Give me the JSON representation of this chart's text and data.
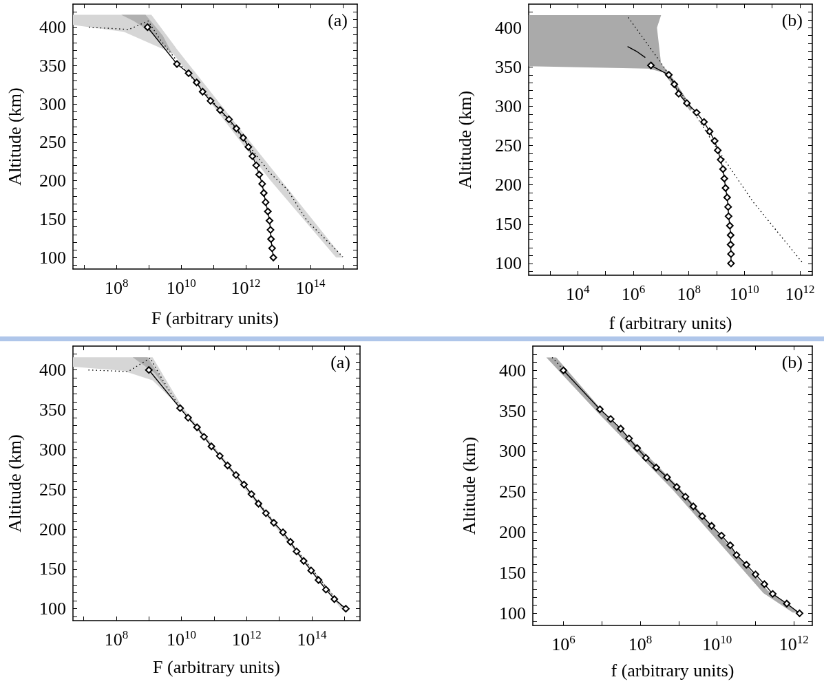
{
  "chart_data": [
    {
      "type": "line",
      "xlabel": "F (arbitrary units)",
      "ylabel": "Altitude (km)",
      "annotations": [
        "(a)"
      ],
      "log": "x",
      "xlim": [
        4500000.0,
        2800000000000000.0
      ],
      "ylim": [
        85,
        430
      ],
      "xticks": [
        {
          "value": 10000000.0,
          "label": null
        },
        {
          "value": 100000000.0,
          "label": "10$^{8}$"
        },
        {
          "value": 1000000000.0,
          "label": null
        },
        {
          "value": 10000000000.0,
          "label": "10$^{10}$"
        },
        {
          "value": 100000000000.0,
          "label": null
        },
        {
          "value": 1000000000000.0,
          "label": "10$^{12}$"
        },
        {
          "value": 10000000000000.0,
          "label": null
        },
        {
          "value": 100000000000000.0,
          "label": "10$^{14}$"
        },
        {
          "value": 1000000000000000.0,
          "label": null
        }
      ],
      "yticks": [
        {
          "value": 90,
          "label": null
        },
        100,
        {
          "value": 110,
          "label": null
        },
        {
          "value": 120,
          "label": null
        },
        {
          "value": 130,
          "label": null
        },
        {
          "value": 140,
          "label": null
        },
        150,
        {
          "value": 160,
          "label": null
        },
        {
          "value": 170,
          "label": null
        },
        {
          "value": 180,
          "label": null
        },
        {
          "value": 190,
          "label": null
        },
        200,
        {
          "value": 210,
          "label": null
        },
        {
          "value": 220,
          "label": null
        },
        {
          "value": 230,
          "label": null
        },
        {
          "value": 240,
          "label": null
        },
        250,
        {
          "value": 260,
          "label": null
        },
        {
          "value": 270,
          "label": null
        },
        {
          "value": 280,
          "label": null
        },
        {
          "value": 290,
          "label": null
        },
        300,
        {
          "value": 310,
          "label": null
        },
        {
          "value": 320,
          "label": null
        },
        {
          "value": 330,
          "label": null
        },
        {
          "value": 340,
          "label": null
        },
        350,
        {
          "value": 360,
          "label": null
        },
        {
          "value": 370,
          "label": null
        },
        {
          "value": 380,
          "label": null
        },
        {
          "value": 390,
          "label": null
        },
        400,
        {
          "value": 410,
          "label": null
        },
        {
          "value": 420,
          "label": null
        }
      ],
      "series": [
        {
          "type": "area",
          "color": "#d6d6d6",
          "x": [
            4500000.0,
            1200000000.0,
            7800000000.0,
            1000000000000.0,
            1000000000000000.0,
            620000000000000.0,
            5600000000000.0,
            5500000000.0,
            950000000.0,
            170000000.0,
            4500000.0
          ],
          "values": [
            416,
            416,
            370,
            258,
            100,
            100,
            201,
            366,
            380,
            394,
            403
          ]
        },
        {
          "type": "area",
          "color": "#b0b0b0",
          "x": [
            140000000.0,
            790000000.0,
            2700000000.0,
            5500000000.0,
            1300000000.0,
            340000000.0
          ],
          "values": [
            416,
            416,
            389,
            364,
            392,
            408
          ]
        },
        {
          "type": "line",
          "line_style": "dotted",
          "marker": "none",
          "color": "#000000",
          "x": [
            14000000.0,
            240000000.0,
            950000000.0,
            2300000000.0,
            7800000000.0,
            87000000000.0,
            1000000000000.0,
            5600000000000.0,
            19000000000000.0,
            78000000000000.0,
            1000000000000000.0
          ],
          "values": [
            400,
            397,
            408,
            383,
            355,
            305,
            251,
            210,
            189,
            148,
            101
          ]
        },
        {
          "type": "line",
          "line_style": "solid",
          "marker": "diamond",
          "color": "#000000",
          "x": [
            910000000.0,
            7400000000.0,
            17000000000.0,
            30000000000.0,
            46000000000.0,
            81000000000.0,
            160000000000.0,
            300000000000.0,
            510000000000.0,
            830000000000.0,
            1200000000000.0,
            1600000000000.0,
            2100000000000.0,
            2600000000000.0,
            3200000000000.0,
            3600000000000.0,
            4100000000000.0,
            4800000000000.0,
            5400000000000.0,
            5800000000000.0,
            6000000000000.0,
            6500000000000.0,
            7100000000000.0
          ],
          "values": [
            400,
            352,
            340,
            328,
            316,
            304,
            292,
            280,
            268,
            256,
            244,
            232,
            220,
            208,
            196,
            184,
            172,
            160,
            148,
            136,
            124,
            112,
            100
          ]
        }
      ]
    },
    {
      "type": "line",
      "xlabel": "f (arbitrary units)",
      "ylabel": "Altitude (km)",
      "annotations": [
        "(b)"
      ],
      "log": "x",
      "xlim": [
        170,
        2800000000000.0
      ],
      "ylim": [
        85,
        430
      ],
      "xticks": [
        {
          "value": 1000.0,
          "label": null
        },
        {
          "value": 10000.0,
          "label": "10$^{4}$"
        },
        {
          "value": 100000.0,
          "label": null
        },
        {
          "value": 1000000.0,
          "label": "10$^{6}$"
        },
        {
          "value": 10000000.0,
          "label": null
        },
        {
          "value": 100000000.0,
          "label": "10$^{8}$"
        },
        {
          "value": 1000000000.0,
          "label": null
        },
        {
          "value": 10000000000.0,
          "label": "10$^{10}$"
        },
        {
          "value": 100000000000.0,
          "label": null
        },
        {
          "value": 1000000000000.0,
          "label": "10$^{12}$"
        }
      ],
      "yticks": [
        {
          "value": 90,
          "label": null
        },
        100,
        {
          "value": 110,
          "label": null
        },
        {
          "value": 120,
          "label": null
        },
        {
          "value": 130,
          "label": null
        },
        {
          "value": 140,
          "label": null
        },
        150,
        {
          "value": 160,
          "label": null
        },
        {
          "value": 170,
          "label": null
        },
        {
          "value": 180,
          "label": null
        },
        {
          "value": 190,
          "label": null
        },
        200,
        {
          "value": 210,
          "label": null
        },
        {
          "value": 220,
          "label": null
        },
        {
          "value": 230,
          "label": null
        },
        {
          "value": 240,
          "label": null
        },
        250,
        {
          "value": 260,
          "label": null
        },
        {
          "value": 270,
          "label": null
        },
        {
          "value": 280,
          "label": null
        },
        {
          "value": 290,
          "label": null
        },
        300,
        {
          "value": 310,
          "label": null
        },
        {
          "value": 320,
          "label": null
        },
        {
          "value": 330,
          "label": null
        },
        {
          "value": 340,
          "label": null
        },
        350,
        {
          "value": 360,
          "label": null
        },
        {
          "value": 370,
          "label": null
        },
        {
          "value": 380,
          "label": null
        },
        {
          "value": 390,
          "label": null
        },
        400,
        {
          "value": 410,
          "label": null
        },
        {
          "value": 420,
          "label": null
        }
      ],
      "series": [
        {
          "type": "area",
          "color": "#aaaaaa",
          "x": [
            170,
            10000000.0,
            7100000.0,
            10000000.0,
            20000000.0,
            140000000.0,
            110000000.0,
            33000000.0,
            12000000.0,
            3500000.0,
            170
          ],
          "values": [
            416,
            416,
            400,
            354,
            342,
            297,
            294,
            322,
            343,
            348,
            351
          ]
        },
        {
          "type": "line",
          "line_style": "dotted",
          "marker": "none",
          "color": "#000000",
          "x": [
            660000.0,
            11000000.0,
            110000000.0,
            910000000.0,
            20000000000.0,
            1300000000000.0
          ],
          "values": [
            413,
            353,
            300,
            249,
            179,
            100
          ]
        },
        {
          "type": "line",
          "line_style": "solid",
          "marker": "none",
          "color": "#000000",
          "x": [
            620000.0,
            1300000.0,
            2700000.0
          ],
          "values": [
            376,
            370,
            362
          ]
        },
        {
          "type": "line",
          "line_style": "solid",
          "marker": "diamond",
          "color": "#000000",
          "x": [
            4300000.0,
            19000000.0,
            30000000.0,
            43000000.0,
            85000000.0,
            190000000.0,
            350000000.0,
            560000000.0,
            850000000.0,
            1100000000.0,
            1400000000.0,
            1700000000.0,
            1900000000.0,
            2100000000.0,
            2400000000.0,
            2600000000.0,
            2700000000.0,
            3000000000.0,
            3200000000.0,
            3200000000.0,
            3300000000.0,
            3300000000.0
          ],
          "values": [
            352,
            340,
            328,
            316,
            304,
            292,
            280,
            268,
            256,
            244,
            232,
            220,
            208,
            196,
            184,
            172,
            160,
            148,
            136,
            124,
            112,
            100
          ]
        }
      ]
    },
    {
      "type": "line",
      "xlabel": "F (arbitrary units)",
      "ylabel": "Altitude (km)",
      "annotations": [
        "(a)"
      ],
      "log": "x",
      "xlim": [
        4700000.0,
        3000000000000000.0
      ],
      "ylim": [
        85,
        430
      ],
      "xticks": [
        {
          "value": 10000000.0,
          "label": null
        },
        {
          "value": 100000000.0,
          "label": "10$^{8}$"
        },
        {
          "value": 1000000000.0,
          "label": null
        },
        {
          "value": 10000000000.0,
          "label": "10$^{10}$"
        },
        {
          "value": 100000000000.0,
          "label": null
        },
        {
          "value": 1000000000000.0,
          "label": "10$^{12}$"
        },
        {
          "value": 10000000000000.0,
          "label": null
        },
        {
          "value": 100000000000000.0,
          "label": "10$^{14}$"
        },
        {
          "value": 1000000000000000.0,
          "label": null
        }
      ],
      "yticks": [
        {
          "value": 90,
          "label": null
        },
        100,
        {
          "value": 110,
          "label": null
        },
        {
          "value": 120,
          "label": null
        },
        {
          "value": 130,
          "label": null
        },
        {
          "value": 140,
          "label": null
        },
        150,
        {
          "value": 160,
          "label": null
        },
        {
          "value": 170,
          "label": null
        },
        {
          "value": 180,
          "label": null
        },
        {
          "value": 190,
          "label": null
        },
        200,
        {
          "value": 210,
          "label": null
        },
        {
          "value": 220,
          "label": null
        },
        {
          "value": 230,
          "label": null
        },
        {
          "value": 240,
          "label": null
        },
        250,
        {
          "value": 260,
          "label": null
        },
        {
          "value": 270,
          "label": null
        },
        {
          "value": 280,
          "label": null
        },
        {
          "value": 290,
          "label": null
        },
        300,
        {
          "value": 310,
          "label": null
        },
        {
          "value": 320,
          "label": null
        },
        {
          "value": 330,
          "label": null
        },
        {
          "value": 340,
          "label": null
        },
        350,
        {
          "value": 360,
          "label": null
        },
        {
          "value": 370,
          "label": null
        },
        {
          "value": 380,
          "label": null
        },
        {
          "value": 390,
          "label": null
        },
        400,
        {
          "value": 410,
          "label": null
        },
        {
          "value": 420,
          "label": null
        }
      ],
      "series": [
        {
          "type": "area",
          "color": "#d6d6d6",
          "x": [
            4700000.0,
            1300000000.0,
            10000000000.0,
            1000000000000000.0,
            790000000000000.0,
            7200000000.0,
            1300000000.0,
            160000000.0,
            4700000.0
          ],
          "values": [
            416,
            416,
            355,
            100,
            100,
            357,
            387,
            399,
            404
          ]
        },
        {
          "type": "area",
          "color": "#b0b0b0",
          "x": [
            320000000.0,
            910000000.0,
            5100000000.0,
            1500000000.0
          ],
          "values": [
            416,
            416,
            368,
            396
          ]
        },
        {
          "type": "line",
          "line_style": "dotted",
          "marker": "none",
          "color": "#000000",
          "x": [
            14000000.0,
            230000000.0,
            1100000000.0,
            2200000000.0,
            9500000000.0,
            930000000000.0,
            950000000000000.0
          ],
          "values": [
            400,
            398,
            415,
            393,
            351,
            253,
            100
          ]
        },
        {
          "type": "line",
          "line_style": "solid",
          "marker": "diamond",
          "color": "#000000",
          "x": [
            1000000000.0,
            9100000000.0,
            16000000000.0,
            30000000000.0,
            49000000000.0,
            83000000000.0,
            150000000000.0,
            260000000000.0,
            470000000000.0,
            830000000000.0,
            1400000000000.0,
            2300000000000.0,
            3900000000000.0,
            6800000000000.0,
            13000000000000.0,
            22000000000000.0,
            34000000000000.0,
            56000000000000.0,
            95000000000000.0,
            160000000000000.0,
            270000000000000.0,
            490000000000000.0,
            1100000000000000.0
          ],
          "values": [
            400,
            352,
            340,
            328,
            316,
            304,
            292,
            280,
            268,
            256,
            244,
            232,
            220,
            208,
            196,
            184,
            172,
            160,
            148,
            136,
            124,
            112,
            100
          ]
        }
      ]
    },
    {
      "type": "line",
      "xlabel": "f (arbitrary units)",
      "ylabel": "Altitude (km)",
      "annotations": [
        "(b)"
      ],
      "log": "x",
      "xlim": [
        160000.0,
        3000000000000.0
      ],
      "ylim": [
        85,
        430
      ],
      "xticks": [
        {
          "value": 1000000.0,
          "label": "10$^{6}$"
        },
        {
          "value": 10000000.0,
          "label": null
        },
        {
          "value": 100000000.0,
          "label": "10$^{8}$"
        },
        {
          "value": 1000000000.0,
          "label": null
        },
        {
          "value": 10000000000.0,
          "label": "10$^{10}$"
        },
        {
          "value": 100000000000.0,
          "label": null
        },
        {
          "value": 1000000000000.0,
          "label": "10$^{12}$"
        }
      ],
      "yticks": [
        {
          "value": 90,
          "label": null
        },
        100,
        {
          "value": 110,
          "label": null
        },
        {
          "value": 120,
          "label": null
        },
        {
          "value": 130,
          "label": null
        },
        {
          "value": 140,
          "label": null
        },
        150,
        {
          "value": 160,
          "label": null
        },
        {
          "value": 170,
          "label": null
        },
        {
          "value": 180,
          "label": null
        },
        {
          "value": 190,
          "label": null
        },
        200,
        {
          "value": 210,
          "label": null
        },
        {
          "value": 220,
          "label": null
        },
        {
          "value": 230,
          "label": null
        },
        {
          "value": 240,
          "label": null
        },
        250,
        {
          "value": 260,
          "label": null
        },
        {
          "value": 270,
          "label": null
        },
        {
          "value": 280,
          "label": null
        },
        {
          "value": 290,
          "label": null
        },
        300,
        {
          "value": 310,
          "label": null
        },
        {
          "value": 320,
          "label": null
        },
        {
          "value": 330,
          "label": null
        },
        {
          "value": 340,
          "label": null
        },
        350,
        {
          "value": 360,
          "label": null
        },
        {
          "value": 370,
          "label": null
        },
        {
          "value": 380,
          "label": null
        },
        {
          "value": 390,
          "label": null
        },
        400,
        {
          "value": 410,
          "label": null
        },
        {
          "value": 420,
          "label": null
        }
      ],
      "series": [
        {
          "type": "area",
          "color": "#aaaaaa",
          "x": [
            360000.0,
            650000.0,
            10000000.0,
            950000000.0,
            210000000000.0,
            1400000000000.0,
            930000000000.0,
            160000000000.0,
            720000000.0,
            7800000.0
          ],
          "values": [
            416,
            416,
            351,
            257,
            128,
            101,
            101,
            125,
            252,
            348
          ]
        },
        {
          "type": "line",
          "line_style": "solid",
          "marker": "diamond",
          "color": "#000000",
          "x": [
            1000000.0,
            8900000.0,
            17000000.0,
            31000000.0,
            51000000.0,
            83000000.0,
            140000000.0,
            260000000.0,
            500000000.0,
            890000000.0,
            1500000000.0,
            2400000000.0,
            4100000000.0,
            7200000000.0,
            13000000000.0,
            22000000000.0,
            32000000000.0,
            58000000000.0,
            100000000000.0,
            170000000000.0,
            280000000000.0,
            650000000000.0,
            1400000000000.0
          ],
          "values": [
            400,
            352,
            340,
            328,
            316,
            304,
            292,
            280,
            268,
            256,
            244,
            232,
            220,
            208,
            196,
            184,
            172,
            160,
            148,
            136,
            124,
            112,
            100
          ]
        },
        {
          "type": "line",
          "line_style": "dotted",
          "marker": "none",
          "color": "#000000",
          "x": [
            510000.0,
            870000.0
          ],
          "values": [
            416,
            404
          ]
        }
      ]
    }
  ]
}
